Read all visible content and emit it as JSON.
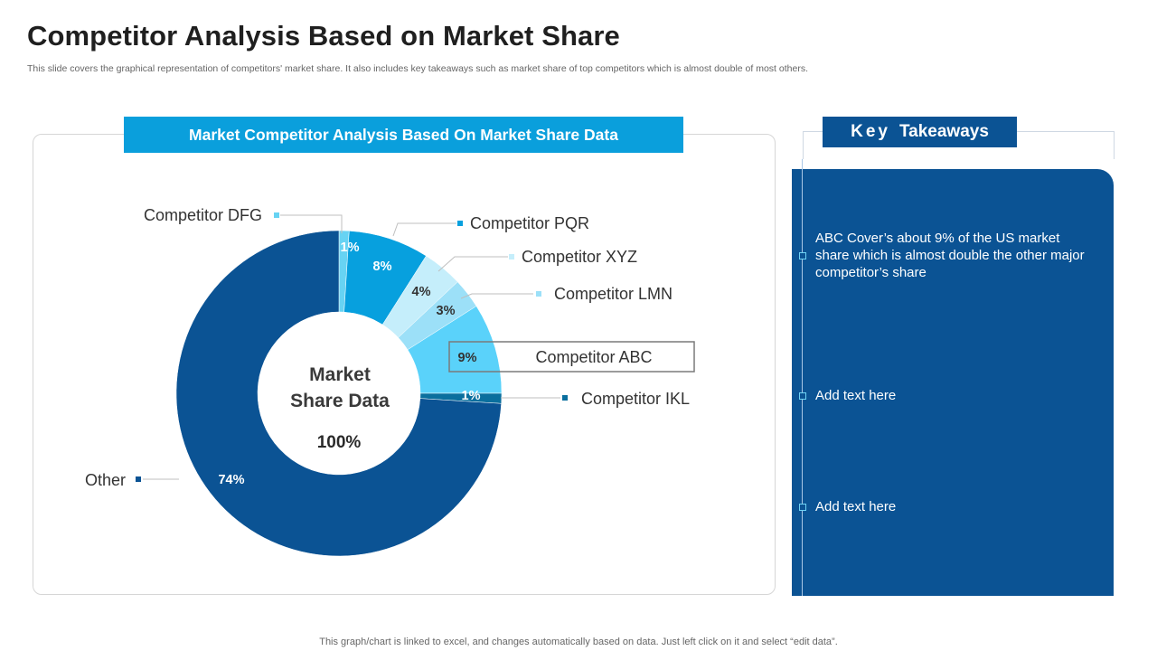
{
  "page": {
    "title": "Competitor Analysis Based on Market Share",
    "subtitle": "This slide covers the graphical representation of competitors' market share. It also includes key takeaways such as market share of top competitors which is almost double of most others.",
    "footer": "This graph/chart is linked to excel,  and changes automatically based on data. Just left click on it and select “edit data”."
  },
  "chart_data": {
    "type": "pie",
    "title": "Market Competitor Analysis Based On Market Share Data",
    "center_label_line1": "Market",
    "center_label_line2": "Share Data",
    "center_value": "100%",
    "slices": [
      {
        "name": "Competitor DFG",
        "value": 1,
        "label": "1%",
        "color": "#67d3f3"
      },
      {
        "name": "Competitor PQR",
        "value": 8,
        "label": "8%",
        "color": "#07a0de"
      },
      {
        "name": "Competitor XYZ",
        "value": 4,
        "label": "4%",
        "color": "#c5eefb"
      },
      {
        "name": "Competitor LMN",
        "value": 3,
        "label": "3%",
        "color": "#9ce0f8"
      },
      {
        "name": "Competitor ABC",
        "value": 9,
        "label": "9%",
        "color": "#5ad2fa"
      },
      {
        "name": "Competitor IKL",
        "value": 1,
        "label": "1%",
        "color": "#0a6f9e"
      },
      {
        "name": "Other",
        "value": 74,
        "label": "74%",
        "color": "#0b5394"
      }
    ]
  },
  "takeaways": {
    "header_key": "Key",
    "header_rest": "Takeaways",
    "items": [
      "ABC Cover’s about 9% of the US market share which is almost double the other major competitor’s share",
      "Add text here",
      "Add text here"
    ]
  }
}
